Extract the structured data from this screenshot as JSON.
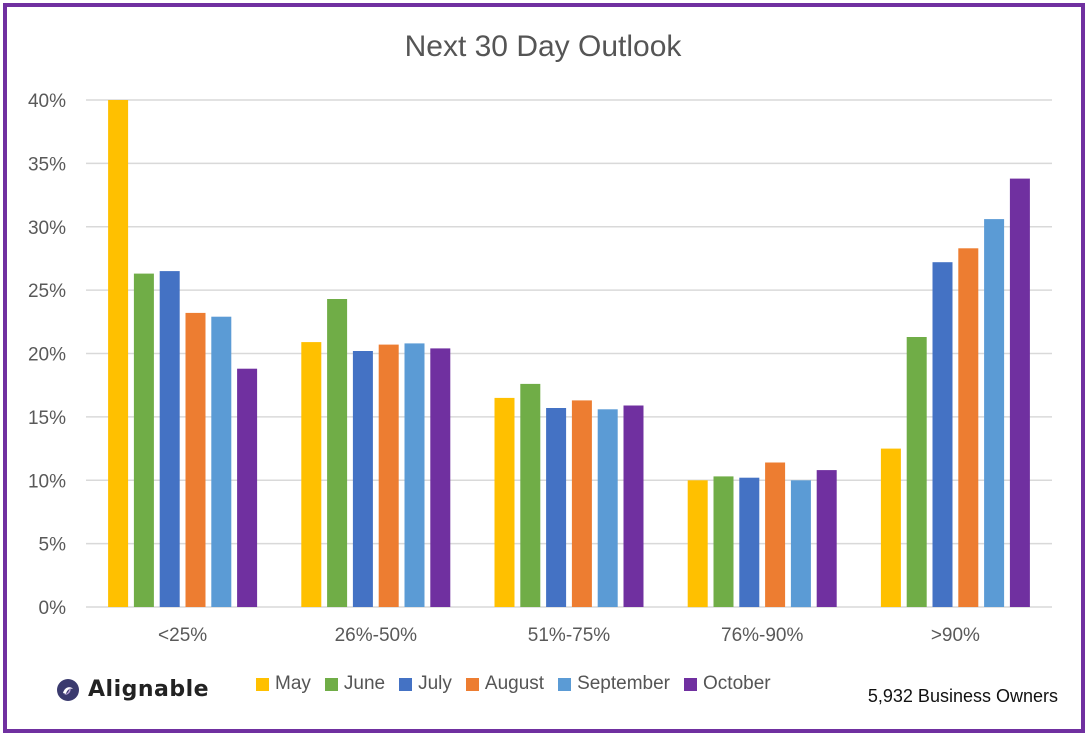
{
  "chart_data": {
    "type": "bar",
    "title": "Next 30 Day Outlook",
    "xlabel": "",
    "ylabel": "",
    "categories": [
      "<25%",
      "26%-50%",
      "51%-75%",
      "76%-90%",
      ">90%"
    ],
    "ylim": [
      0,
      40
    ],
    "yticks": [
      "0%",
      "5%",
      "10%",
      "15%",
      "20%",
      "25%",
      "30%",
      "35%",
      "40%"
    ],
    "ytick_values": [
      0,
      5,
      10,
      15,
      20,
      25,
      30,
      35,
      40
    ],
    "grid": true,
    "legend_position": "bottom",
    "series": [
      {
        "name": "May",
        "color": "#ffc000",
        "values": [
          40.0,
          20.9,
          16.5,
          10.0,
          12.5
        ]
      },
      {
        "name": "June",
        "color": "#70ad47",
        "values": [
          26.3,
          24.3,
          17.6,
          10.3,
          21.3
        ]
      },
      {
        "name": "July",
        "color": "#4472c4",
        "values": [
          26.5,
          20.2,
          15.7,
          10.2,
          27.2
        ]
      },
      {
        "name": "August",
        "color": "#ed7d31",
        "values": [
          23.2,
          20.7,
          16.3,
          11.4,
          28.3
        ]
      },
      {
        "name": "September",
        "color": "#5b9bd5",
        "values": [
          22.9,
          20.8,
          15.6,
          10.0,
          30.6
        ]
      },
      {
        "name": "October",
        "color": "#7030a0",
        "values": [
          18.8,
          20.4,
          15.9,
          10.8,
          33.8
        ]
      }
    ]
  },
  "branding": {
    "logo_text": "Alignable",
    "footnote": "5,932 Business Owners"
  },
  "colors": {
    "frame": "#7030a0",
    "gridline": "#d9d9d9",
    "axis_text": "#595959"
  }
}
